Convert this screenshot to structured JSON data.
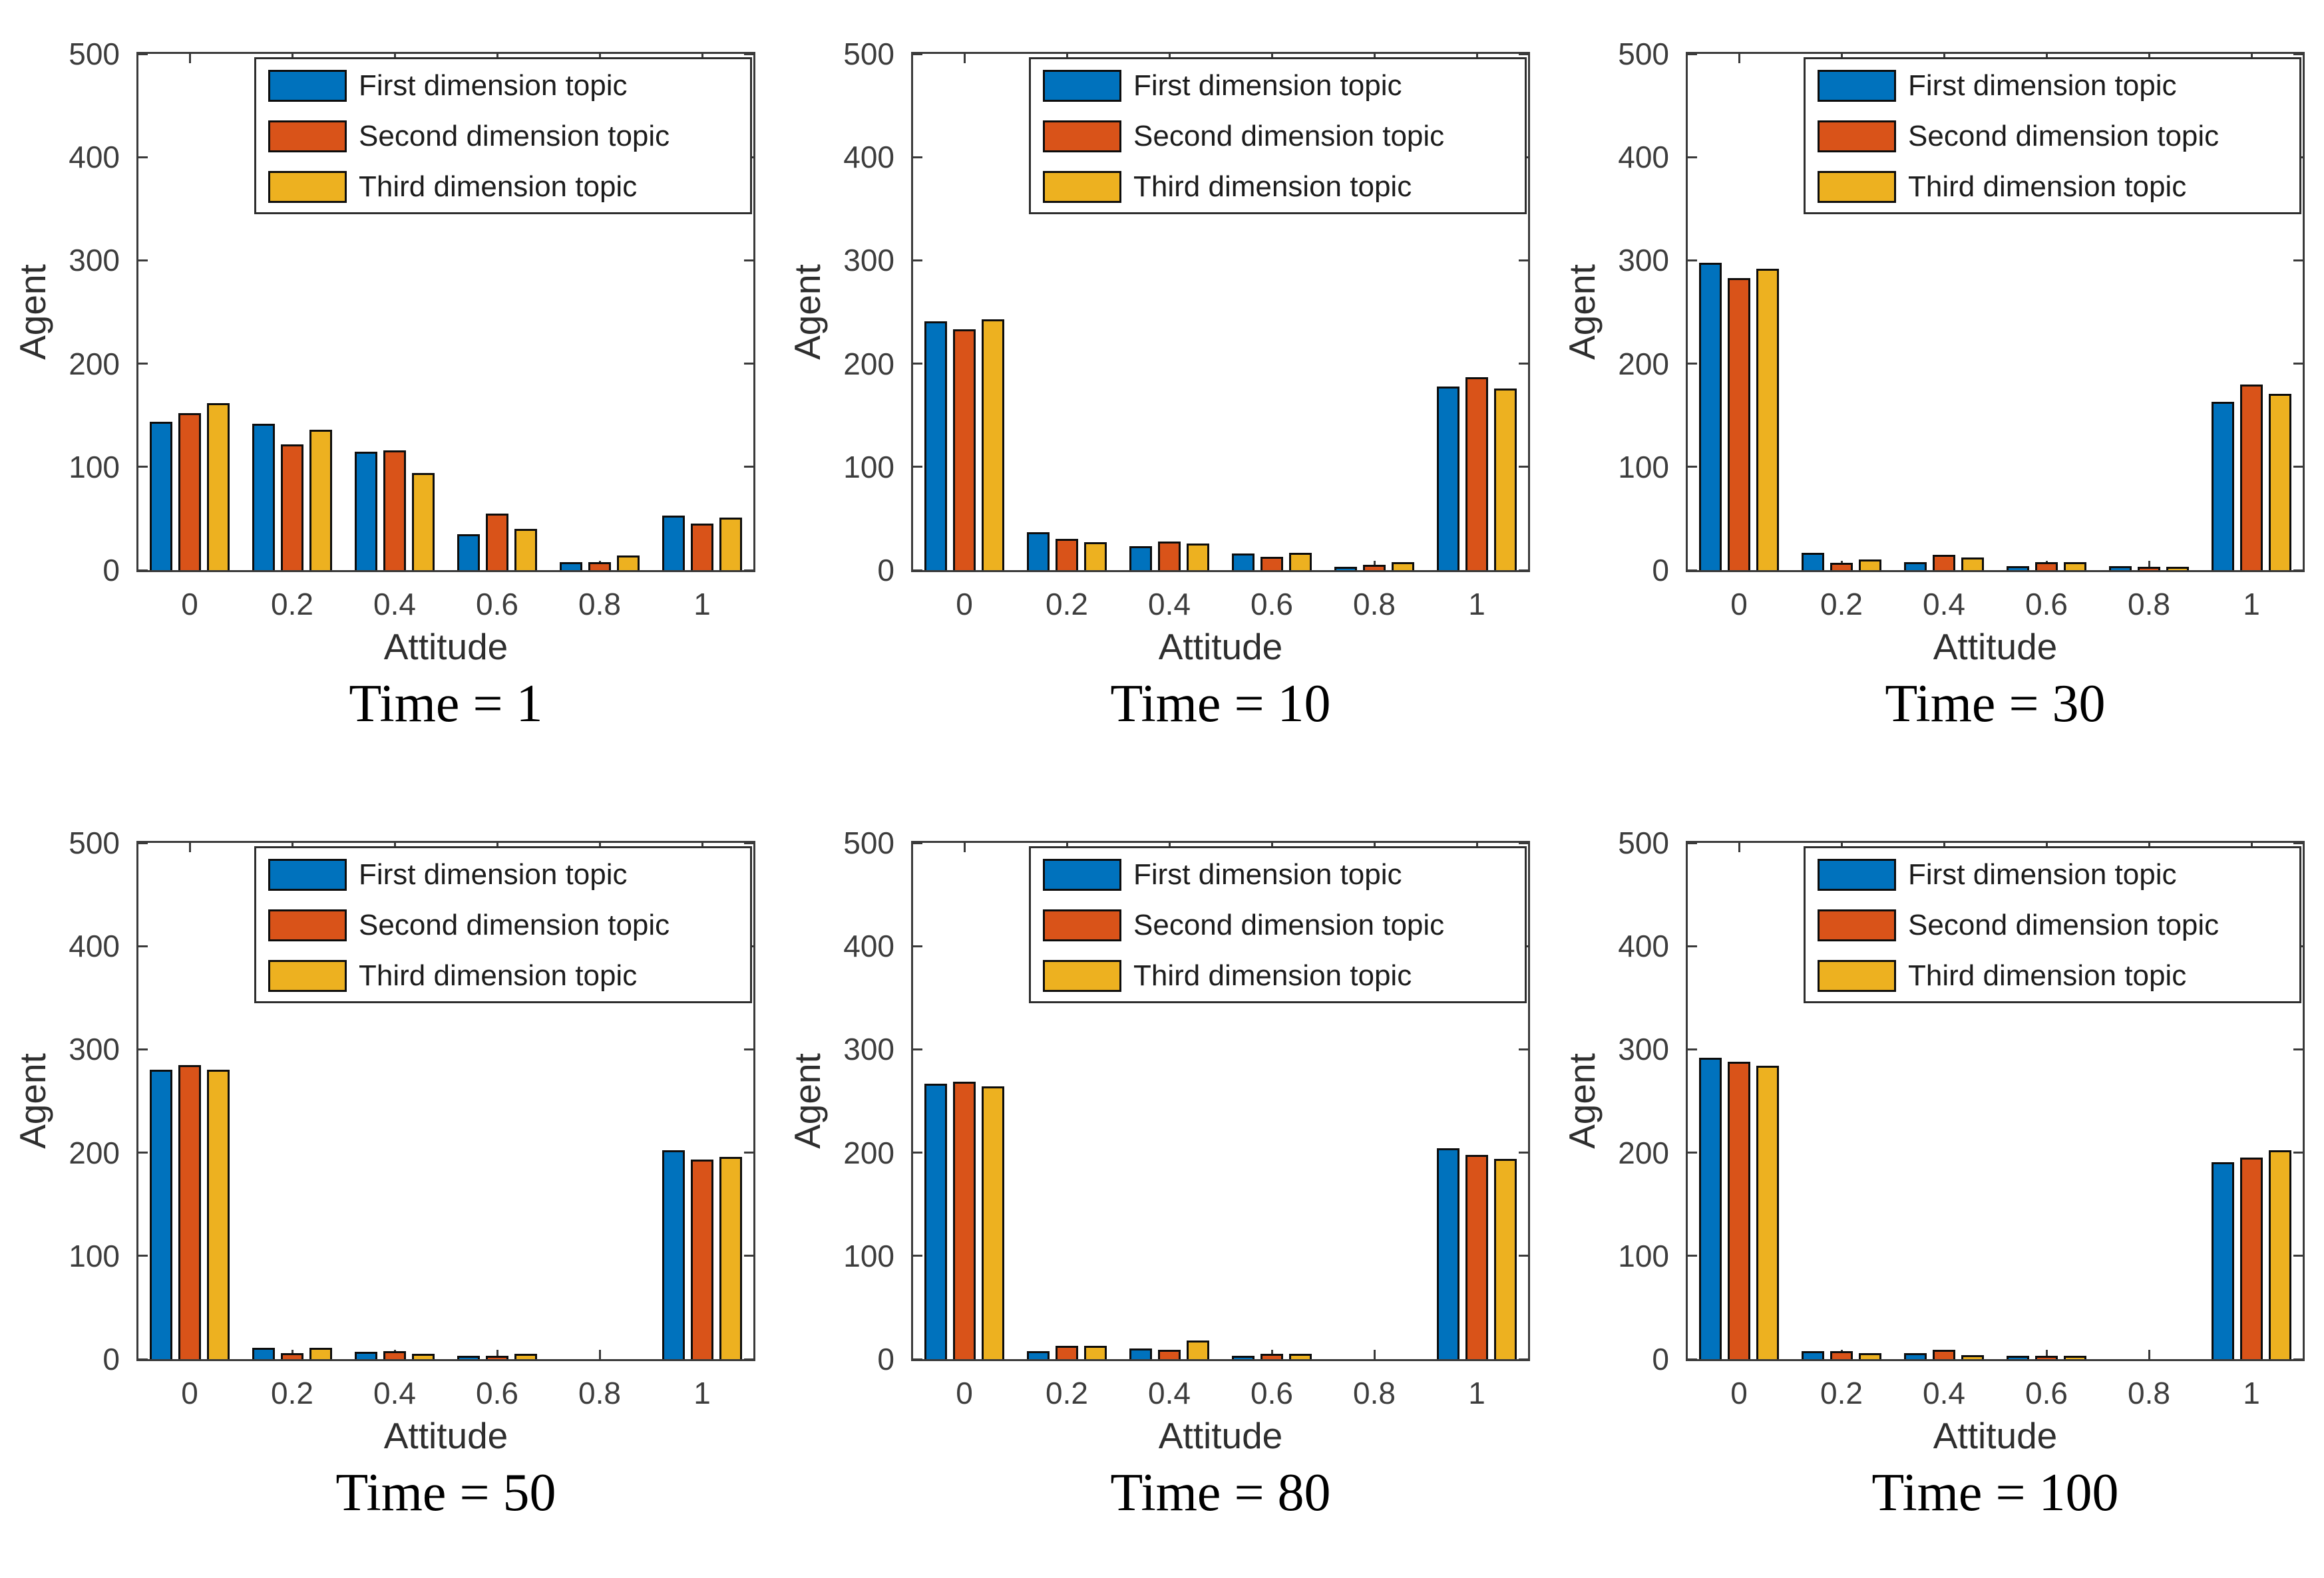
{
  "figure": {
    "background": "#ffffff",
    "axis_color": "#3a3a3a",
    "tick_text_color": "#3d3d3d",
    "bar_edge_color": "#0d0d0d",
    "series_colors": {
      "first": "#0072BD",
      "second": "#D95319",
      "third": "#EDB120"
    }
  },
  "legend": {
    "position": "top-right-inside",
    "items": [
      {
        "label": "First dimension topic",
        "color": "#0072BD"
      },
      {
        "label": "Second dimension topic",
        "color": "#D95319"
      },
      {
        "label": "Third dimension topic",
        "color": "#EDB120"
      }
    ]
  },
  "chart_data": [
    {
      "type": "bar",
      "title": "Time = 1",
      "xlabel": "Attitude",
      "ylabel": "Agent",
      "ylim": [
        0,
        500
      ],
      "yticks": [
        0,
        100,
        200,
        300,
        400,
        500
      ],
      "categories": [
        "0",
        "0.2",
        "0.4",
        "0.6",
        "0.8",
        "1"
      ],
      "grid": false,
      "legend_position": "top-right-inside",
      "series": [
        {
          "name": "First dimension topic",
          "color": "#0072BD",
          "values": [
            144,
            142,
            115,
            35,
            8,
            53
          ]
        },
        {
          "name": "Second dimension topic",
          "color": "#D95319",
          "values": [
            152,
            122,
            116,
            55,
            8,
            45
          ]
        },
        {
          "name": "Third dimension topic",
          "color": "#EDB120",
          "values": [
            162,
            136,
            94,
            40,
            14,
            51
          ]
        }
      ]
    },
    {
      "type": "bar",
      "title": "Time = 10",
      "xlabel": "Attitude",
      "ylabel": "Agent",
      "ylim": [
        0,
        500
      ],
      "yticks": [
        0,
        100,
        200,
        300,
        400,
        500
      ],
      "categories": [
        "0",
        "0.2",
        "0.4",
        "0.6",
        "0.8",
        "1"
      ],
      "grid": false,
      "legend_position": "top-right-inside",
      "series": [
        {
          "name": "First dimension topic",
          "color": "#0072BD",
          "values": [
            241,
            37,
            23,
            16,
            2,
            178
          ]
        },
        {
          "name": "Second dimension topic",
          "color": "#D95319",
          "values": [
            233,
            30,
            28,
            13,
            5,
            187
          ]
        },
        {
          "name": "Third dimension topic",
          "color": "#EDB120",
          "values": [
            243,
            27,
            26,
            17,
            8,
            176
          ]
        }
      ]
    },
    {
      "type": "bar",
      "title": "Time = 30",
      "xlabel": "Attitude",
      "ylabel": "Agent",
      "ylim": [
        0,
        500
      ],
      "yticks": [
        0,
        100,
        200,
        300,
        400,
        500
      ],
      "categories": [
        "0",
        "0.2",
        "0.4",
        "0.6",
        "0.8",
        "1"
      ],
      "grid": false,
      "legend_position": "top-right-inside",
      "series": [
        {
          "name": "First dimension topic",
          "color": "#0072BD",
          "values": [
            298,
            17,
            8,
            4,
            4,
            163
          ]
        },
        {
          "name": "Second dimension topic",
          "color": "#D95319",
          "values": [
            283,
            7,
            15,
            8,
            2,
            180
          ]
        },
        {
          "name": "Third dimension topic",
          "color": "#EDB120",
          "values": [
            292,
            10,
            12,
            8,
            2,
            171
          ]
        }
      ]
    },
    {
      "type": "bar",
      "title": "Time = 50",
      "xlabel": "Attitude",
      "ylabel": "Agent",
      "ylim": [
        0,
        500
      ],
      "yticks": [
        0,
        100,
        200,
        300,
        400,
        500
      ],
      "categories": [
        "0",
        "0.2",
        "0.4",
        "0.6",
        "0.8",
        "1"
      ],
      "grid": false,
      "legend_position": "top-right-inside",
      "series": [
        {
          "name": "First dimension topic",
          "color": "#0072BD",
          "values": [
            280,
            11,
            7,
            1,
            0,
            202
          ]
        },
        {
          "name": "Second dimension topic",
          "color": "#D95319",
          "values": [
            285,
            6,
            8,
            3,
            0,
            193
          ]
        },
        {
          "name": "Third dimension topic",
          "color": "#EDB120",
          "values": [
            280,
            11,
            5,
            5,
            0,
            196
          ]
        }
      ]
    },
    {
      "type": "bar",
      "title": "Time = 80",
      "xlabel": "Attitude",
      "ylabel": "Agent",
      "ylim": [
        0,
        500
      ],
      "yticks": [
        0,
        100,
        200,
        300,
        400,
        500
      ],
      "categories": [
        "0",
        "0.2",
        "0.4",
        "0.6",
        "0.8",
        "1"
      ],
      "grid": false,
      "legend_position": "top-right-inside",
      "series": [
        {
          "name": "First dimension topic",
          "color": "#0072BD",
          "values": [
            267,
            8,
            10,
            3,
            0,
            204
          ]
        },
        {
          "name": "Second dimension topic",
          "color": "#D95319",
          "values": [
            269,
            13,
            9,
            5,
            0,
            198
          ]
        },
        {
          "name": "Third dimension topic",
          "color": "#EDB120",
          "values": [
            264,
            13,
            18,
            5,
            0,
            194
          ]
        }
      ]
    },
    {
      "type": "bar",
      "title": "Time = 100",
      "xlabel": "Attitude",
      "ylabel": "Agent",
      "ylim": [
        0,
        500
      ],
      "yticks": [
        0,
        100,
        200,
        300,
        400,
        500
      ],
      "categories": [
        "0",
        "0.2",
        "0.4",
        "0.6",
        "0.8",
        "1"
      ],
      "grid": false,
      "legend_position": "top-right-inside",
      "series": [
        {
          "name": "First dimension topic",
          "color": "#0072BD",
          "values": [
            292,
            8,
            6,
            2,
            0,
            191
          ]
        },
        {
          "name": "Second dimension topic",
          "color": "#D95319",
          "values": [
            288,
            8,
            9,
            1,
            0,
            195
          ]
        },
        {
          "name": "Third dimension topic",
          "color": "#EDB120",
          "values": [
            284,
            6,
            4,
            2,
            0,
            202
          ]
        }
      ]
    }
  ]
}
